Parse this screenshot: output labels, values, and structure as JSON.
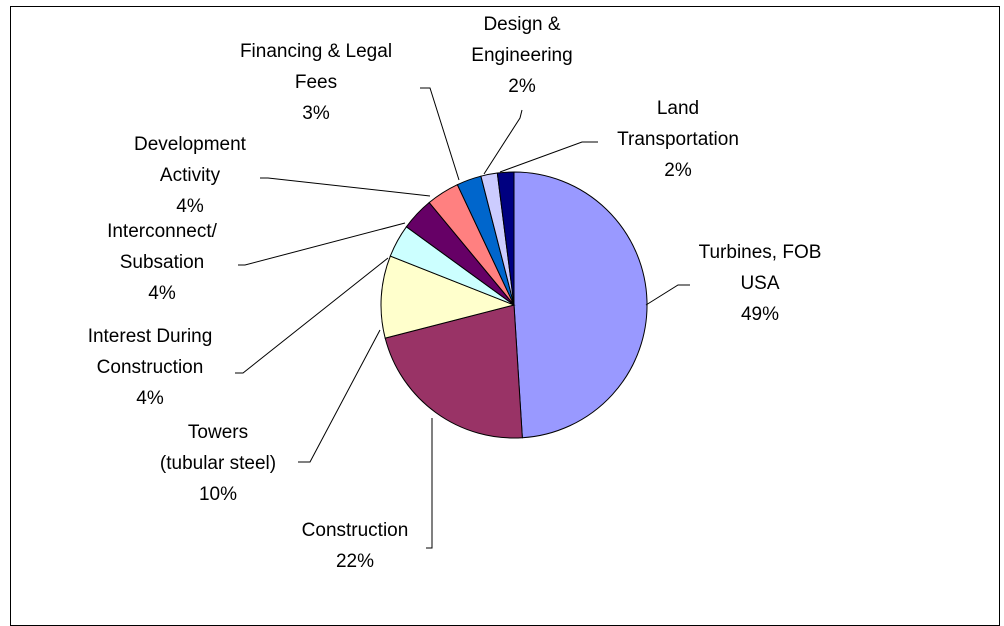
{
  "chart_data": {
    "type": "pie",
    "slices": [
      {
        "label": [
          "Turbines, FOB",
          "USA"
        ],
        "percent_label": "49%",
        "value": 49,
        "color": "#9999ff"
      },
      {
        "label": [
          "Construction"
        ],
        "percent_label": "22%",
        "value": 22,
        "color": "#993366"
      },
      {
        "label": [
          "Towers",
          "(tubular steel)"
        ],
        "percent_label": "10%",
        "value": 10,
        "color": "#ffffcc"
      },
      {
        "label": [
          "Interest During",
          "Construction"
        ],
        "percent_label": "4%",
        "value": 4,
        "color": "#ccffff"
      },
      {
        "label": [
          "Interconnect/",
          "Subsation"
        ],
        "percent_label": "4%",
        "value": 4,
        "color": "#660066"
      },
      {
        "label": [
          "Development",
          "Activity"
        ],
        "percent_label": "4%",
        "value": 4,
        "color": "#ff8080"
      },
      {
        "label": [
          "Financing & Legal",
          "Fees"
        ],
        "percent_label": "3%",
        "value": 3,
        "color": "#0066cc"
      },
      {
        "label": [
          "Design &",
          "Engineering"
        ],
        "percent_label": "2%",
        "value": 2,
        "color": "#ccccff"
      },
      {
        "label": [
          "Land",
          "Transportation"
        ],
        "percent_label": "2%",
        "value": 2,
        "color": "#000080"
      }
    ]
  }
}
